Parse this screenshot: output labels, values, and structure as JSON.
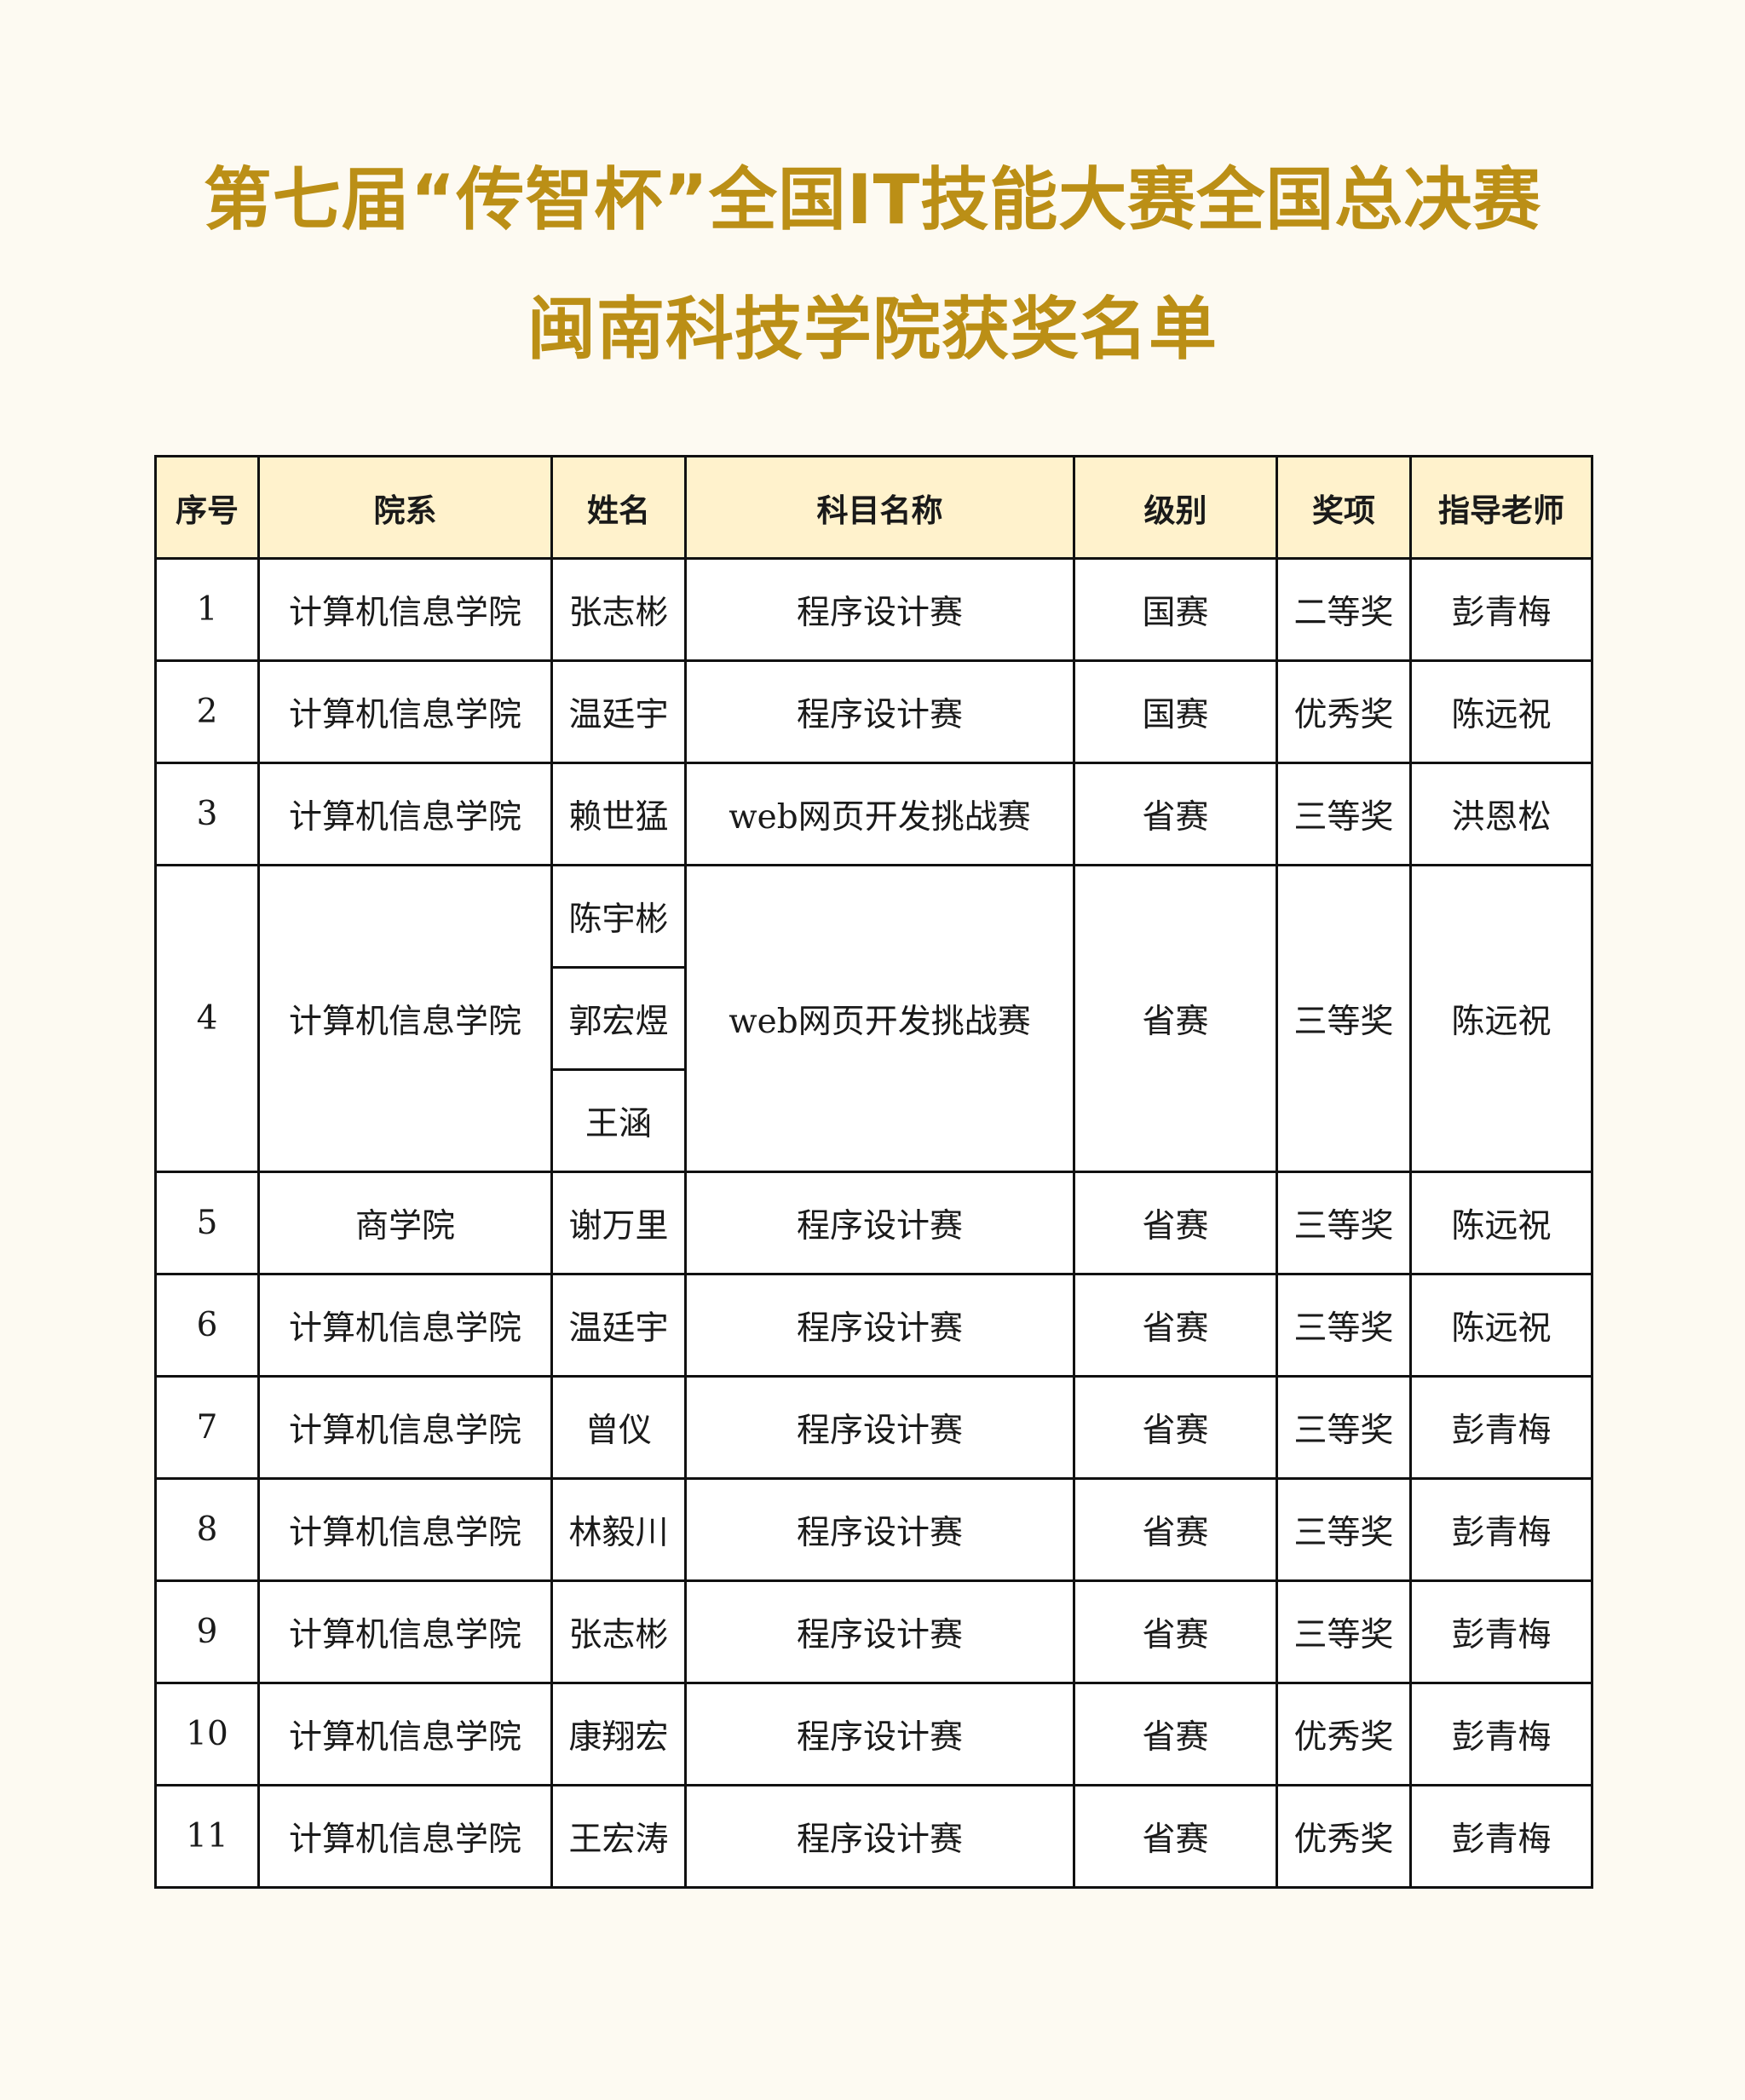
{
  "title": {
    "line1": "第七届“传智杯”全国IT技能大赛全国总决赛",
    "line2": "闽南科技学院获奖名单",
    "color": "#bb8f16"
  },
  "table": {
    "header_bg": "#fff2cc",
    "headers": [
      "序号",
      "院系",
      "姓名",
      "科目名称",
      "级别",
      "奖项",
      "指导老师"
    ],
    "rows": [
      {
        "no": "1",
        "dept": "计算机信息学院",
        "names": [
          "张志彬"
        ],
        "subject": "程序设计赛",
        "level": "国赛",
        "award": "二等奖",
        "teacher": "彭青梅"
      },
      {
        "no": "2",
        "dept": "计算机信息学院",
        "names": [
          "温廷宇"
        ],
        "subject": "程序设计赛",
        "level": "国赛",
        "award": "优秀奖",
        "teacher": "陈远祝"
      },
      {
        "no": "3",
        "dept": "计算机信息学院",
        "names": [
          "赖世猛"
        ],
        "subject": "web网页开发挑战赛",
        "level": "省赛",
        "award": "三等奖",
        "teacher": "洪恩松"
      },
      {
        "no": "4",
        "dept": "计算机信息学院",
        "names": [
          "陈宇彬",
          "郭宏煜",
          "王涵"
        ],
        "subject": "web网页开发挑战赛",
        "level": "省赛",
        "award": "三等奖",
        "teacher": "陈远祝"
      },
      {
        "no": "5",
        "dept": "商学院",
        "names": [
          "谢万里"
        ],
        "subject": "程序设计赛",
        "level": "省赛",
        "award": "三等奖",
        "teacher": "陈远祝"
      },
      {
        "no": "6",
        "dept": "计算机信息学院",
        "names": [
          "温廷宇"
        ],
        "subject": "程序设计赛",
        "level": "省赛",
        "award": "三等奖",
        "teacher": "陈远祝"
      },
      {
        "no": "7",
        "dept": "计算机信息学院",
        "names": [
          "曾仪"
        ],
        "subject": "程序设计赛",
        "level": "省赛",
        "award": "三等奖",
        "teacher": "彭青梅"
      },
      {
        "no": "8",
        "dept": "计算机信息学院",
        "names": [
          "林毅川"
        ],
        "subject": "程序设计赛",
        "level": "省赛",
        "award": "三等奖",
        "teacher": "彭青梅"
      },
      {
        "no": "9",
        "dept": "计算机信息学院",
        "names": [
          "张志彬"
        ],
        "subject": "程序设计赛",
        "level": "省赛",
        "award": "三等奖",
        "teacher": "彭青梅"
      },
      {
        "no": "10",
        "dept": "计算机信息学院",
        "names": [
          "康翔宏"
        ],
        "subject": "程序设计赛",
        "level": "省赛",
        "award": "优秀奖",
        "teacher": "彭青梅"
      },
      {
        "no": "11",
        "dept": "计算机信息学院",
        "names": [
          "王宏涛"
        ],
        "subject": "程序设计赛",
        "level": "省赛",
        "award": "优秀奖",
        "teacher": "彭青梅"
      }
    ]
  }
}
